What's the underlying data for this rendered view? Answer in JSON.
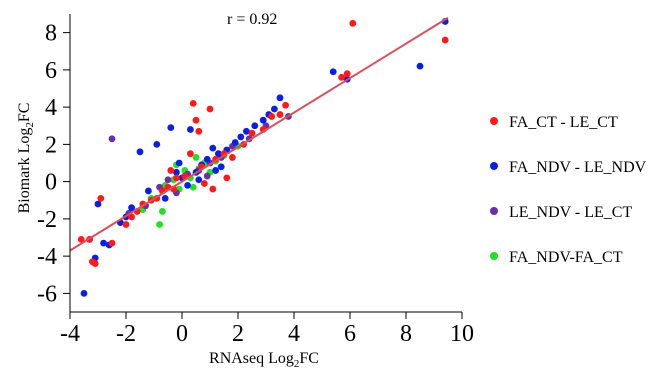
{
  "chart_data": {
    "type": "scatter",
    "xlabel": {
      "prefix": "RNAseq Log",
      "sub": "2",
      "suffix": "FC"
    },
    "ylabel": {
      "prefix": "Biomark Log",
      "sub": "2",
      "suffix": "FC"
    },
    "xlim": [
      -4,
      10
    ],
    "ylim": [
      -7,
      9
    ],
    "xticks": [
      -4,
      -2,
      0,
      2,
      4,
      6,
      8,
      10
    ],
    "yticks": [
      -6,
      -4,
      -2,
      0,
      2,
      4,
      6,
      8
    ],
    "xtick_labels": [
      "-4",
      "-2",
      "0",
      "2",
      "4",
      "6",
      "8",
      "10"
    ],
    "ytick_labels": [
      "-6",
      "-4",
      "-2",
      "0",
      "2",
      "4",
      "6",
      "8"
    ],
    "grid": false,
    "annotation": "r = 0.92",
    "legend_position": "right",
    "fit_line": {
      "x": [
        -4,
        9.5
      ],
      "y": [
        -3.7,
        8.8
      ],
      "color": "#d9505a"
    },
    "series": [
      {
        "name": "FA_CT - LE_CT",
        "color": "#ff1a1a",
        "points": [
          [
            6.1,
            8.5
          ],
          [
            9.4,
            7.6
          ],
          [
            5.9,
            5.8
          ],
          [
            5.7,
            5.6
          ],
          [
            -3.6,
            -3.1
          ],
          [
            -3.3,
            -3.1
          ],
          [
            -3.2,
            -4.3
          ],
          [
            -3.1,
            -4.4
          ],
          [
            -2.9,
            -0.9
          ],
          [
            -2.5,
            -3.3
          ],
          [
            -2.0,
            -2.3
          ],
          [
            -1.8,
            -1.9
          ],
          [
            -1.6,
            -1.6
          ],
          [
            -1.4,
            -1.2
          ],
          [
            -1.1,
            -1.0
          ],
          [
            -0.9,
            -0.9
          ],
          [
            -0.7,
            -0.5
          ],
          [
            -0.5,
            -0.3
          ],
          [
            -0.3,
            -0.4
          ],
          [
            -0.2,
            0.2
          ],
          [
            0.1,
            0.3
          ],
          [
            0.3,
            1.5
          ],
          [
            0.4,
            4.2
          ],
          [
            0.5,
            3.3
          ],
          [
            0.6,
            2.7
          ],
          [
            0.7,
            0.8
          ],
          [
            1.0,
            3.9
          ],
          [
            1.2,
            1.2
          ],
          [
            1.5,
            1.5
          ],
          [
            1.8,
            1.3
          ],
          [
            2.2,
            2.0
          ],
          [
            2.5,
            2.6
          ],
          [
            2.9,
            2.8
          ],
          [
            3.2,
            3.5
          ],
          [
            3.5,
            3.6
          ],
          [
            3.7,
            4.1
          ],
          [
            0.8,
            -0.1
          ],
          [
            -0.4,
            0.6
          ],
          [
            1.1,
            -0.4
          ],
          [
            1.6,
            0.2
          ]
        ]
      },
      {
        "name": "FA_NDV - LE_NDV",
        "color": "#0a1ee6",
        "points": [
          [
            9.4,
            8.6
          ],
          [
            8.5,
            6.2
          ],
          [
            5.9,
            5.5
          ],
          [
            5.4,
            5.9
          ],
          [
            3.5,
            4.5
          ],
          [
            3.3,
            3.9
          ],
          [
            -3.5,
            -6.0
          ],
          [
            -3.1,
            -4.1
          ],
          [
            -3.3,
            -3.1
          ],
          [
            -2.8,
            -3.3
          ],
          [
            -2.6,
            -3.4
          ],
          [
            -3.0,
            -1.2
          ],
          [
            -2.2,
            -2.2
          ],
          [
            -2.0,
            -1.9
          ],
          [
            -1.5,
            1.6
          ],
          [
            -1.2,
            -0.5
          ],
          [
            -0.9,
            2.0
          ],
          [
            -0.4,
            2.9
          ],
          [
            -0.2,
            0.5
          ],
          [
            0.0,
            0.2
          ],
          [
            0.2,
            -0.2
          ],
          [
            0.5,
            0.5
          ],
          [
            0.7,
            0.9
          ],
          [
            0.9,
            1.2
          ],
          [
            1.1,
            1.8
          ],
          [
            1.3,
            1.5
          ],
          [
            1.4,
            0.8
          ],
          [
            1.6,
            1.7
          ],
          [
            1.9,
            2.1
          ],
          [
            2.1,
            2.4
          ],
          [
            2.3,
            2.7
          ],
          [
            2.6,
            3.0
          ],
          [
            2.9,
            3.3
          ],
          [
            3.1,
            3.6
          ],
          [
            0.3,
            2.8
          ],
          [
            -0.6,
            -0.9
          ],
          [
            -1.8,
            -1.4
          ],
          [
            0.6,
            0.1
          ],
          [
            1.2,
            0.6
          ],
          [
            -0.1,
            1.0
          ]
        ]
      },
      {
        "name": "LE_NDV - LE_CT",
        "color": "#6b2fa8",
        "points": [
          [
            -2.5,
            2.3
          ],
          [
            -1.9,
            -1.7
          ],
          [
            -1.3,
            -1.3
          ],
          [
            -0.8,
            -0.3
          ],
          [
            -0.2,
            -0.6
          ],
          [
            0.2,
            0.4
          ],
          [
            0.6,
            0.6
          ],
          [
            1.0,
            1.0
          ],
          [
            1.4,
            1.3
          ],
          [
            1.8,
            1.9
          ],
          [
            2.4,
            2.3
          ],
          [
            3.0,
            3.0
          ],
          [
            3.8,
            3.5
          ],
          [
            0.9,
            0.3
          ],
          [
            -0.5,
            0.1
          ]
        ]
      },
      {
        "name": "FA_NDV-FA_CT",
        "color": "#22e022",
        "points": [
          [
            -1.4,
            -1.5
          ],
          [
            -1.1,
            -0.9
          ],
          [
            -0.8,
            -2.3
          ],
          [
            -0.7,
            -1.6
          ],
          [
            -0.6,
            -0.2
          ],
          [
            -0.3,
            0.1
          ],
          [
            -0.1,
            -0.4
          ],
          [
            0.1,
            0.6
          ],
          [
            0.3,
            0.2
          ],
          [
            0.4,
            -0.3
          ],
          [
            0.6,
            0.7
          ],
          [
            0.8,
            1.0
          ],
          [
            1.0,
            0.5
          ],
          [
            1.2,
            1.1
          ],
          [
            1.5,
            1.4
          ],
          [
            2.0,
            1.9
          ],
          [
            -0.2,
            0.9
          ],
          [
            0.5,
            1.3
          ]
        ]
      }
    ]
  }
}
